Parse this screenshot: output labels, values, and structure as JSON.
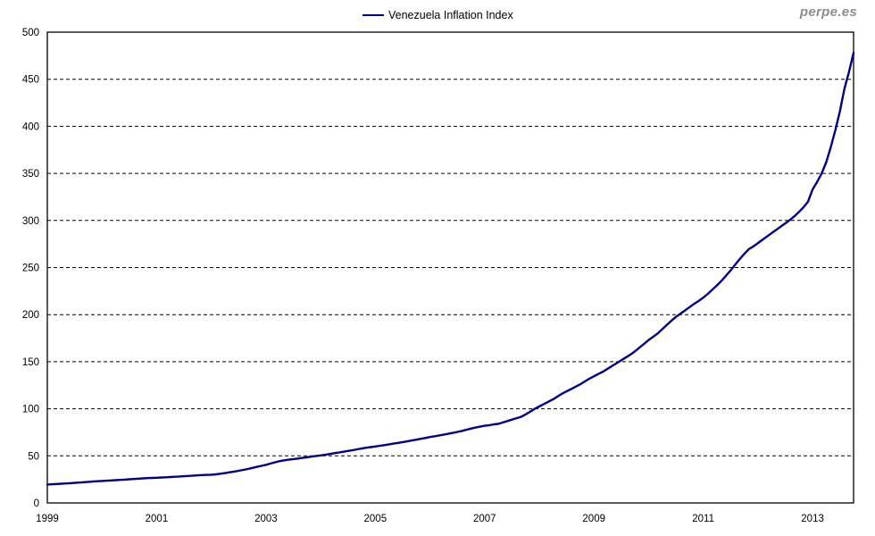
{
  "watermark": {
    "text": "perpe.es",
    "color": "#8c8c8c"
  },
  "legend": {
    "label": "Venezuela Inflation Index",
    "line_color": "#000087"
  },
  "chart_data": {
    "type": "line",
    "title": "Venezuela Inflation Index",
    "xlabel": "",
    "ylabel": "",
    "ylim": [
      0,
      500
    ],
    "y_ticks": [
      0,
      50,
      100,
      150,
      200,
      250,
      300,
      350,
      400,
      450,
      500
    ],
    "x_tick_labels": [
      "1999",
      "2001",
      "2003",
      "2005",
      "2007",
      "2009",
      "2011",
      "2013"
    ],
    "x_tick_years": [
      1999,
      2001,
      2003,
      2005,
      2007,
      2009,
      2011,
      2013
    ],
    "grid": "horizontal-dashed",
    "grid_color": "#000000",
    "frame_color": "#000000",
    "legend_position": "top-center",
    "series": [
      {
        "name": "Venezuela Inflation Index",
        "color": "#000087",
        "frequency": "monthly",
        "start": "1999-01",
        "end": "2013-10",
        "values": [
          19.5,
          19.8,
          20.1,
          20.4,
          20.7,
          21.0,
          21.3,
          21.6,
          22.0,
          22.4,
          22.8,
          23.1,
          23.3,
          23.6,
          23.9,
          24.2,
          24.5,
          24.8,
          25.1,
          25.4,
          25.8,
          26.1,
          26.4,
          26.6,
          26.8,
          27.0,
          27.2,
          27.5,
          27.8,
          28.1,
          28.4,
          28.7,
          29.0,
          29.3,
          29.6,
          29.8,
          30.0,
          30.4,
          31.0,
          31.7,
          32.5,
          33.3,
          34.2,
          35.1,
          36.1,
          37.2,
          38.3,
          39.4,
          40.5,
          41.8,
          43.2,
          44.4,
          45.3,
          46.0,
          46.6,
          47.2,
          47.8,
          48.5,
          49.2,
          49.9,
          50.5,
          51.2,
          52.0,
          52.8,
          53.6,
          54.4,
          55.2,
          56.0,
          56.9,
          57.8,
          58.6,
          59.3,
          60.0,
          60.7,
          61.4,
          62.2,
          63.0,
          63.8,
          64.6,
          65.4,
          66.3,
          67.2,
          68.1,
          69.0,
          70.0,
          70.8,
          71.6,
          72.5,
          73.4,
          74.4,
          75.4,
          76.5,
          77.7,
          78.9,
          80.1,
          81.0,
          82.0,
          82.5,
          83.5,
          84.0,
          85.5,
          87.0,
          88.5,
          90.0,
          91.5,
          94.0,
          97.0,
          100.0,
          102.5,
          105.0,
          107.5,
          110.0,
          113.0,
          116.0,
          118.5,
          121.0,
          123.5,
          126.0,
          129.0,
          132.0,
          134.5,
          137.0,
          139.5,
          142.5,
          145.5,
          148.5,
          151.5,
          154.5,
          157.5,
          161.0,
          165.0,
          169.0,
          173.0,
          176.5,
          180.0,
          184.5,
          189.0,
          193.5,
          197.5,
          201.0,
          204.5,
          208.0,
          211.5,
          214.5,
          218.0,
          222.0,
          226.5,
          231.0,
          236.0,
          241.5,
          247.0,
          253.0,
          259.0,
          264.5,
          269.5,
          272.5,
          276.0,
          279.5,
          283.0,
          286.5,
          290.0,
          293.5,
          297.0,
          300.5,
          304.5,
          309.0,
          314.0,
          320.0,
          333.0,
          341.0,
          350.0,
          362.0,
          378.0,
          396.0,
          416.0,
          440.0,
          458.0,
          478.0
        ]
      }
    ]
  }
}
